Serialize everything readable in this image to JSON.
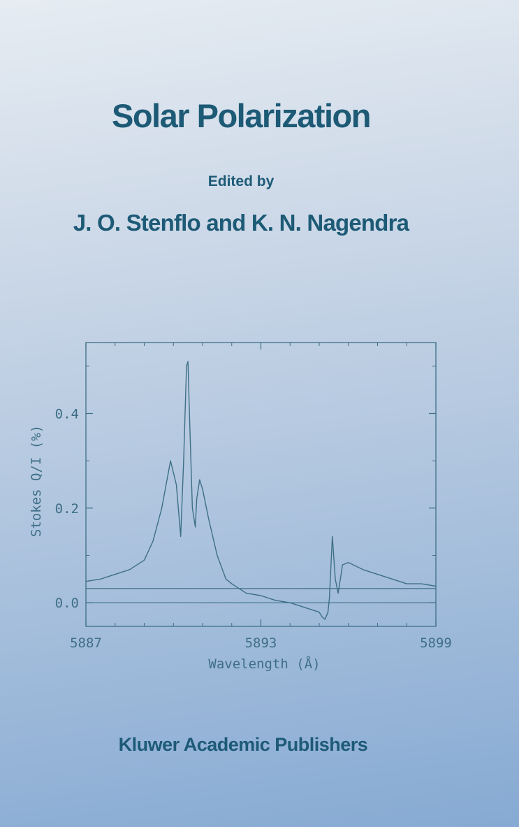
{
  "cover": {
    "title": "Solar Polarization",
    "edited_by": "Edited by",
    "editors": "J. O. Stenflo and K. N. Nagendra",
    "publisher": "Kluwer Academic Publishers"
  },
  "colors": {
    "text": "#1d5a76",
    "plot_line": "#3e6f86"
  },
  "chart_data": {
    "type": "line",
    "xlabel": "Wavelength (Å)",
    "ylabel": "Stokes Q/I (%)",
    "xlim": [
      5887,
      5899
    ],
    "ylim": [
      -0.05,
      0.55
    ],
    "x_ticks": [
      5887,
      5893,
      5899
    ],
    "x_tick_labels": [
      "5887",
      "5893",
      "5899"
    ],
    "y_ticks": [
      0.0,
      0.2,
      0.4
    ],
    "y_tick_labels": [
      "0.0",
      "0.2",
      "0.4"
    ],
    "reference_lines": [
      0.0,
      0.03
    ],
    "grid": false,
    "series": [
      {
        "x": [
          5887.0,
          5887.5,
          5888.0,
          5888.5,
          5889.0,
          5889.3,
          5889.6,
          5889.9,
          5890.1,
          5890.25,
          5890.35,
          5890.45,
          5890.5,
          5890.55,
          5890.65,
          5890.75,
          5890.8,
          5890.9,
          5891.0,
          5891.2,
          5891.5,
          5891.8,
          5892.0,
          5892.5,
          5893.0,
          5893.5,
          5894.0,
          5894.5,
          5895.0,
          5895.1,
          5895.2,
          5895.3,
          5895.35,
          5895.45,
          5895.55,
          5895.65,
          5895.8,
          5896.0,
          5896.5,
          5897.0,
          5897.5,
          5898.0,
          5898.5,
          5899.0
        ],
        "y": [
          0.045,
          0.05,
          0.06,
          0.07,
          0.09,
          0.13,
          0.2,
          0.3,
          0.25,
          0.14,
          0.3,
          0.5,
          0.51,
          0.4,
          0.2,
          0.16,
          0.22,
          0.26,
          0.24,
          0.18,
          0.1,
          0.05,
          0.04,
          0.02,
          0.015,
          0.005,
          0.0,
          -0.01,
          -0.02,
          -0.03,
          -0.035,
          -0.02,
          0.01,
          0.14,
          0.05,
          0.02,
          0.08,
          0.085,
          0.07,
          0.06,
          0.05,
          0.04,
          0.04,
          0.035
        ]
      }
    ]
  }
}
